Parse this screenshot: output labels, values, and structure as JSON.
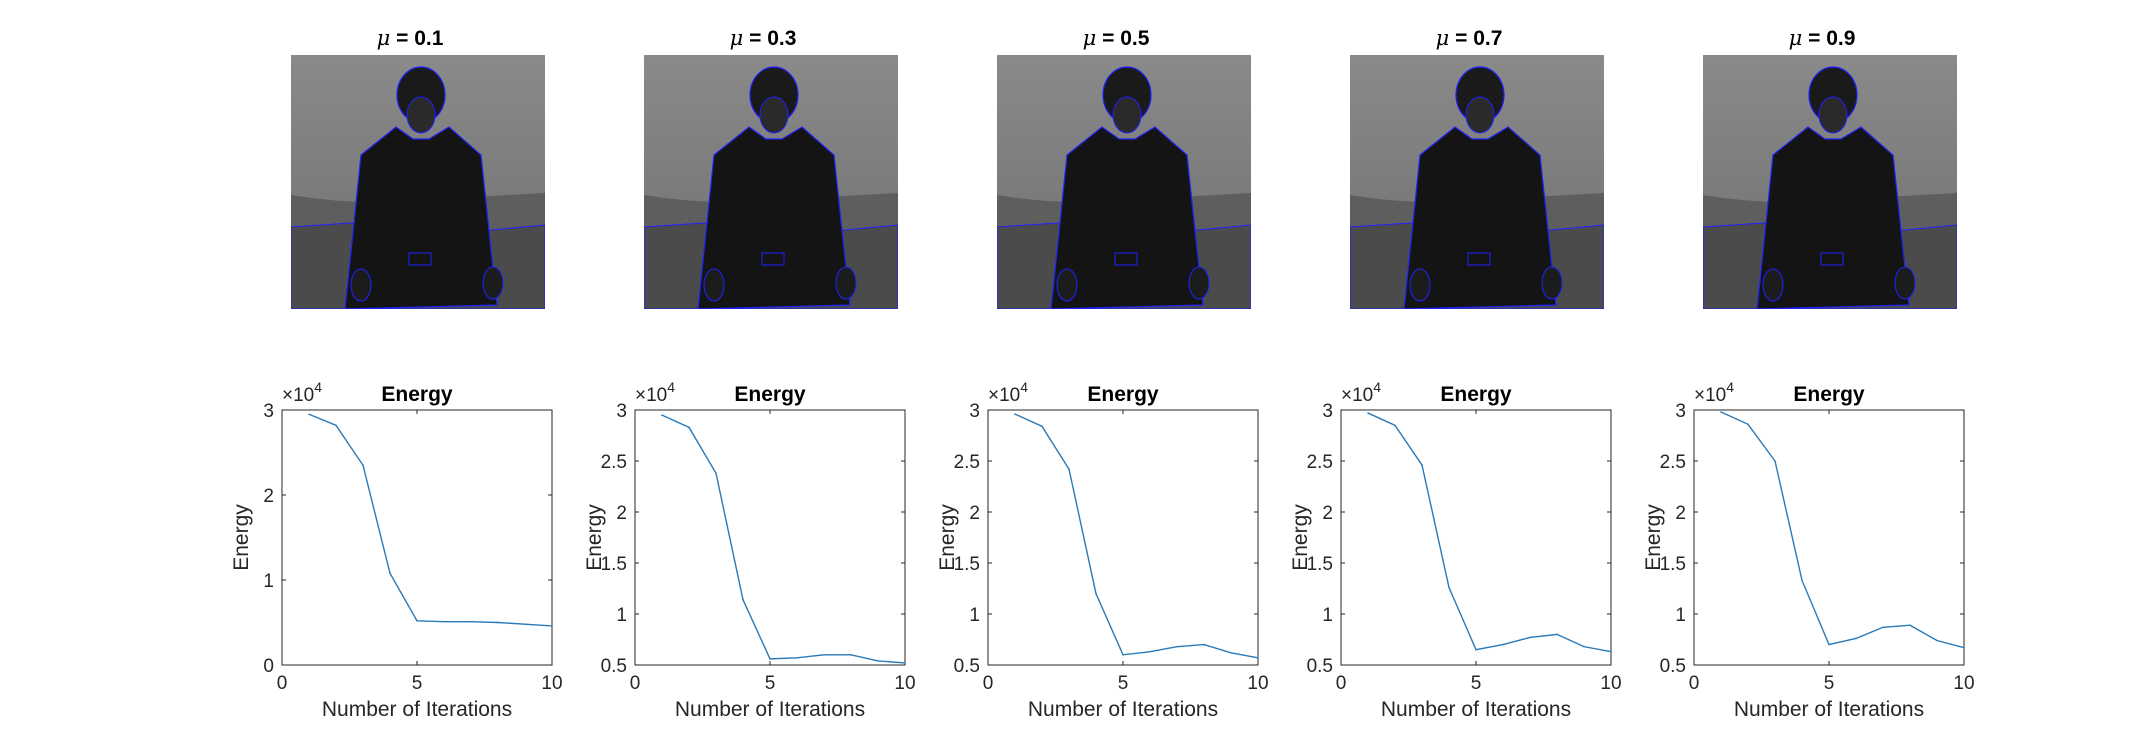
{
  "images": [
    {
      "title_symbol": "μ",
      "title_value": "= 0.1"
    },
    {
      "title_symbol": "μ",
      "title_value": "= 0.3"
    },
    {
      "title_symbol": "μ",
      "title_value": "= 0.5"
    },
    {
      "title_symbol": "μ",
      "title_value": "= 0.7"
    },
    {
      "title_symbol": "μ",
      "title_value": "= 0.9"
    }
  ],
  "colors": {
    "line": "#2a7ab8",
    "contour": "#1f22ff",
    "background_gray": "#7a7a7a"
  },
  "chart_data": [
    {
      "type": "line",
      "title": "Energy",
      "xlabel": "Number of Iterations",
      "ylabel": "Energy",
      "exponent_label": "×10",
      "exponent": "4",
      "xlim": [
        0,
        10
      ],
      "ylim": [
        0,
        3
      ],
      "xticks": [
        "0",
        "5",
        "10"
      ],
      "yticks": [
        "0",
        "1",
        "2",
        "3"
      ],
      "x": [
        1,
        2,
        3,
        4,
        5,
        6,
        7,
        8,
        9,
        10
      ],
      "values": [
        2.95,
        2.82,
        2.35,
        1.08,
        0.52,
        0.51,
        0.51,
        0.5,
        0.48,
        0.46
      ]
    },
    {
      "type": "line",
      "title": "Energy",
      "xlabel": "Number of Iterations",
      "ylabel": "Energy",
      "exponent_label": "×10",
      "exponent": "4",
      "xlim": [
        0,
        10
      ],
      "ylim": [
        0.5,
        3
      ],
      "xticks": [
        "0",
        "5",
        "10"
      ],
      "yticks": [
        "0.5",
        "1",
        "1.5",
        "2",
        "2.5",
        "3"
      ],
      "x": [
        1,
        2,
        3,
        4,
        5,
        6,
        7,
        8,
        9,
        10
      ],
      "values": [
        2.95,
        2.83,
        2.38,
        1.14,
        0.56,
        0.57,
        0.6,
        0.6,
        0.54,
        0.52
      ]
    },
    {
      "type": "line",
      "title": "Energy",
      "xlabel": "Number of Iterations",
      "ylabel": "Energy",
      "exponent_label": "×10",
      "exponent": "4",
      "xlim": [
        0,
        10
      ],
      "ylim": [
        0.5,
        3
      ],
      "xticks": [
        "0",
        "5",
        "10"
      ],
      "yticks": [
        "0.5",
        "1",
        "1.5",
        "2",
        "2.5",
        "3"
      ],
      "x": [
        1,
        2,
        3,
        4,
        5,
        6,
        7,
        8,
        9,
        10
      ],
      "values": [
        2.96,
        2.84,
        2.42,
        1.2,
        0.6,
        0.63,
        0.68,
        0.7,
        0.62,
        0.57
      ]
    },
    {
      "type": "line",
      "title": "Energy",
      "xlabel": "Number of Iterations",
      "ylabel": "Energy",
      "exponent_label": "×10",
      "exponent": "4",
      "xlim": [
        0,
        10
      ],
      "ylim": [
        0.5,
        3
      ],
      "xticks": [
        "0",
        "5",
        "10"
      ],
      "yticks": [
        "0.5",
        "1",
        "1.5",
        "2",
        "2.5",
        "3"
      ],
      "x": [
        1,
        2,
        3,
        4,
        5,
        6,
        7,
        8,
        9,
        10
      ],
      "values": [
        2.97,
        2.85,
        2.46,
        1.26,
        0.65,
        0.7,
        0.77,
        0.8,
        0.68,
        0.63
      ]
    },
    {
      "type": "line",
      "title": "Energy",
      "xlabel": "Number of Iterations",
      "ylabel": "Energy",
      "exponent_label": "×10",
      "exponent": "4",
      "xlim": [
        0,
        10
      ],
      "ylim": [
        0.5,
        3
      ],
      "xticks": [
        "0",
        "5",
        "10"
      ],
      "yticks": [
        "0.5",
        "1",
        "1.5",
        "2",
        "2.5",
        "3"
      ],
      "x": [
        1,
        2,
        3,
        4,
        5,
        6,
        7,
        8,
        9,
        10
      ],
      "values": [
        2.98,
        2.86,
        2.5,
        1.33,
        0.7,
        0.76,
        0.87,
        0.89,
        0.74,
        0.67
      ]
    }
  ]
}
